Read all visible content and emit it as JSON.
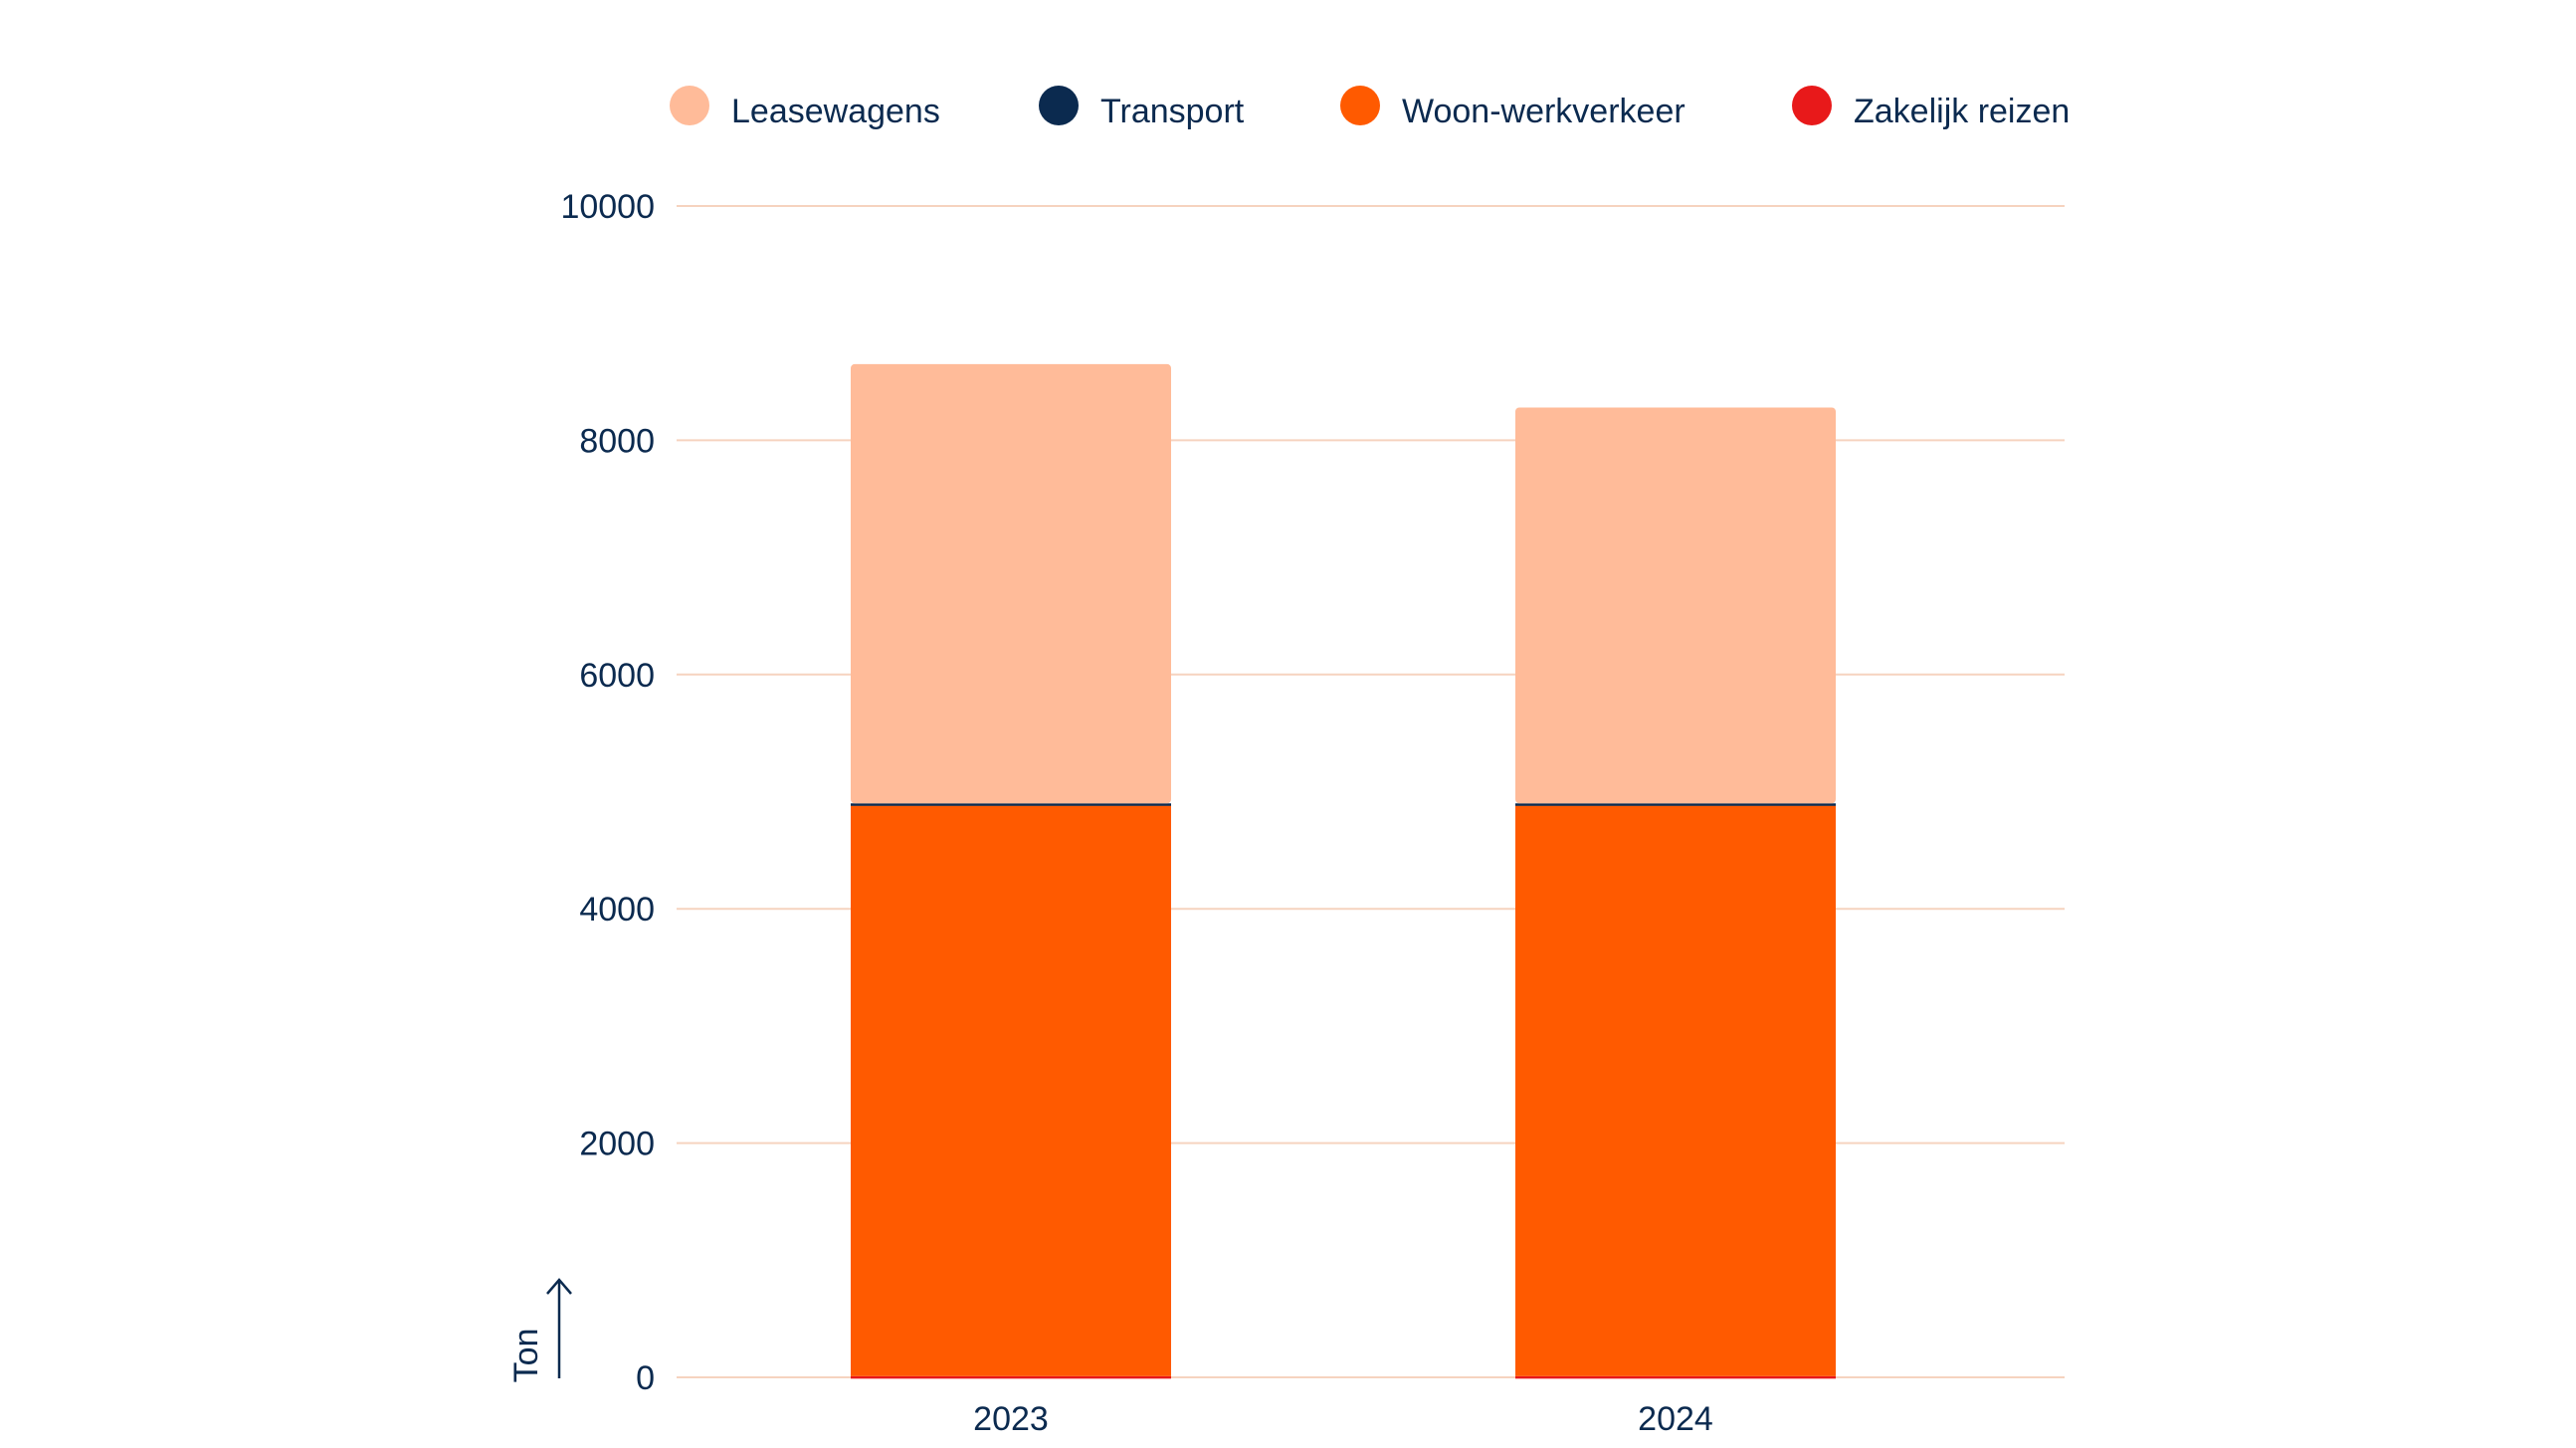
{
  "chart_data": {
    "type": "bar",
    "stacked": true,
    "categories": [
      "2023",
      "2024"
    ],
    "series": [
      {
        "name": "Zakelijk reizen",
        "color": "#e8191a",
        "values": [
          10,
          10
        ]
      },
      {
        "name": "Woon-werkverkeer",
        "color": "#ff5a00",
        "values": [
          4870,
          4870
        ]
      },
      {
        "name": "Transport",
        "color": "#0b2a4f",
        "values": [
          20,
          20
        ]
      },
      {
        "name": "Leasewagens",
        "color": "#ffbb99",
        "values": [
          3750,
          3380
        ]
      }
    ],
    "legend_order": [
      "Leasewagens",
      "Transport",
      "Woon-werkverkeer",
      "Zakelijk reizen"
    ],
    "legend_position": "top",
    "ylabel": "Ton",
    "ylim": [
      0,
      10000
    ],
    "yticks": [
      "0",
      "2000",
      "4000",
      "6000",
      "8000",
      "10000"
    ],
    "grid": true,
    "grid_color": "#f6d3bf",
    "text_color": "#0b2a4f"
  }
}
